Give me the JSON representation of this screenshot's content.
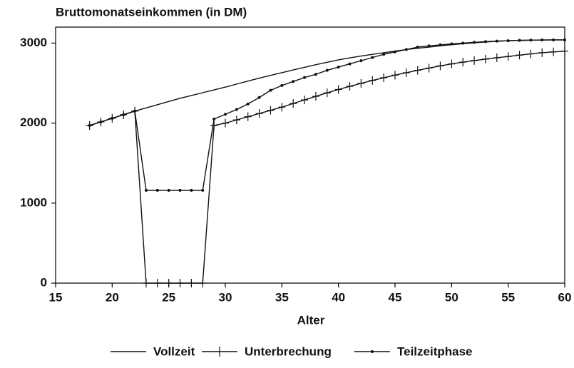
{
  "chart_data": {
    "type": "line",
    "title": "Bruttomonatseinkommen (in DM)",
    "x_label": "Alter",
    "x": [
      18,
      19,
      20,
      21,
      22,
      23,
      24,
      25,
      26,
      27,
      28,
      29,
      30,
      31,
      32,
      33,
      34,
      35,
      36,
      37,
      38,
      39,
      40,
      41,
      42,
      43,
      44,
      45,
      46,
      47,
      48,
      49,
      50,
      51,
      52,
      53,
      54,
      55,
      56,
      57,
      58,
      59,
      60
    ],
    "series": [
      {
        "name": "Vollzeit",
        "color": "#111111",
        "marker": "none",
        "values": [
          1970,
          2015,
          2060,
          2105,
          2150,
          2190,
          2230,
          2270,
          2310,
          2345,
          2380,
          2415,
          2450,
          2488,
          2525,
          2562,
          2597,
          2630,
          2665,
          2697,
          2730,
          2760,
          2790,
          2815,
          2838,
          2860,
          2880,
          2900,
          2920,
          2935,
          2950,
          2965,
          2980,
          2992,
          3003,
          3013,
          3022,
          3030,
          3034,
          3037,
          3039,
          3040,
          3040
        ]
      },
      {
        "name": "Unterbrechung",
        "color": "#111111",
        "marker": "plus",
        "values": [
          1970,
          2015,
          2060,
          2105,
          2150,
          0,
          0,
          0,
          0,
          0,
          0,
          1970,
          2000,
          2040,
          2080,
          2120,
          2160,
          2200,
          2245,
          2290,
          2335,
          2378,
          2420,
          2460,
          2497,
          2533,
          2567,
          2600,
          2630,
          2660,
          2688,
          2715,
          2740,
          2762,
          2782,
          2800,
          2817,
          2833,
          2850,
          2865,
          2880,
          2890,
          2900
        ]
      },
      {
        "name": "Teilzeitphase",
        "color": "#111111",
        "marker": "dot",
        "values": [
          1970,
          2015,
          2060,
          2105,
          2150,
          1160,
          1160,
          1160,
          1160,
          1160,
          1160,
          2050,
          2110,
          2170,
          2240,
          2320,
          2410,
          2470,
          2520,
          2570,
          2610,
          2660,
          2700,
          2740,
          2780,
          2820,
          2860,
          2890,
          2920,
          2950,
          2965,
          2978,
          2990,
          3000,
          3010,
          3018,
          3025,
          3030,
          3034,
          3037,
          3039,
          3040,
          3040
        ]
      }
    ],
    "xlim": [
      15,
      60
    ],
    "xticks": [
      15,
      20,
      25,
      30,
      35,
      40,
      45,
      50,
      55,
      60
    ],
    "ylim": [
      0,
      3200
    ],
    "yticks": [
      0,
      1000,
      2000,
      3000
    ],
    "legend": "bottom"
  }
}
